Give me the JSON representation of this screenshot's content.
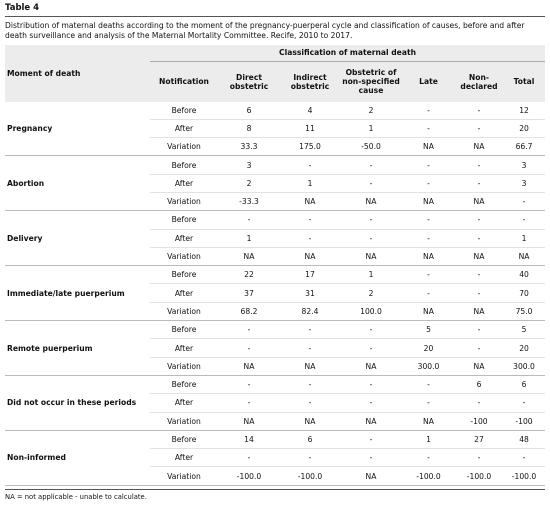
{
  "title": "Table 4",
  "caption": "Distribution of maternal deaths according to the moment of the pregnancy-puerperal cycle and classification of causes, before and after death surveillance and analysis of the Maternal Mortality Committee. Recife, 2010 to 2017.",
  "table": {
    "row_header": "Moment of death",
    "group_header": "Classification of maternal death",
    "columns": [
      "Notification",
      "Direct obstetric",
      "Indirect obstetric",
      "Obstetric of non-specified cause",
      "Late",
      "Non-declared",
      "Total"
    ],
    "groups": [
      {
        "moment": "Pregnancy",
        "rows": [
          [
            "Before",
            "6",
            "4",
            "2",
            "-",
            "-",
            "12"
          ],
          [
            "After",
            "8",
            "11",
            "1",
            "-",
            "-",
            "20"
          ],
          [
            "Variation",
            "33.3",
            "175.0",
            "-50.0",
            "NA",
            "NA",
            "66.7"
          ]
        ]
      },
      {
        "moment": "Abortion",
        "rows": [
          [
            "Before",
            "3",
            "-",
            "-",
            "-",
            "-",
            "3"
          ],
          [
            "After",
            "2",
            "1",
            "-",
            "-",
            "-",
            "3"
          ],
          [
            "Variation",
            "-33.3",
            "NA",
            "NA",
            "NA",
            "NA",
            "-"
          ]
        ]
      },
      {
        "moment": "Delivery",
        "rows": [
          [
            "Before",
            "-",
            "-",
            "-",
            "-",
            "-",
            "-"
          ],
          [
            "After",
            "1",
            "-",
            "-",
            "-",
            "-",
            "1"
          ],
          [
            "Variation",
            "NA",
            "NA",
            "NA",
            "NA",
            "NA",
            "NA"
          ]
        ]
      },
      {
        "moment": "Immediate/late puerperium",
        "rows": [
          [
            "Before",
            "22",
            "17",
            "1",
            "-",
            "-",
            "40"
          ],
          [
            "After",
            "37",
            "31",
            "2",
            "-",
            "-",
            "70"
          ],
          [
            "Variation",
            "68.2",
            "82.4",
            "100.0",
            "NA",
            "NA",
            "75.0"
          ]
        ]
      },
      {
        "moment": "Remote puerperium",
        "rows": [
          [
            "Before",
            "-",
            "-",
            "-",
            "5",
            "-",
            "5"
          ],
          [
            "After",
            "-",
            "-",
            "-",
            "20",
            "-",
            "20"
          ],
          [
            "Variation",
            "NA",
            "NA",
            "NA",
            "300.0",
            "NA",
            "300.0"
          ]
        ]
      },
      {
        "moment": "Did not occur in these periods",
        "rows": [
          [
            "Before",
            "-",
            "-",
            "-",
            "-",
            "6",
            "6"
          ],
          [
            "After",
            "-",
            "-",
            "-",
            "-",
            "-",
            "-"
          ],
          [
            "Variation",
            "NA",
            "NA",
            "NA",
            "NA",
            "-100",
            "-100"
          ]
        ]
      },
      {
        "moment": "Non-informed",
        "rows": [
          [
            "Before",
            "14",
            "6",
            "-",
            "1",
            "27",
            "48"
          ],
          [
            "After",
            "-",
            "-",
            "-",
            "-",
            "-",
            "-"
          ],
          [
            "Variation",
            "-100.0",
            "-100.0",
            "NA",
            "-100.0",
            "-100.0",
            "-100.0"
          ]
        ]
      }
    ]
  },
  "footnote": "NA = not applicable - unable to calculate."
}
